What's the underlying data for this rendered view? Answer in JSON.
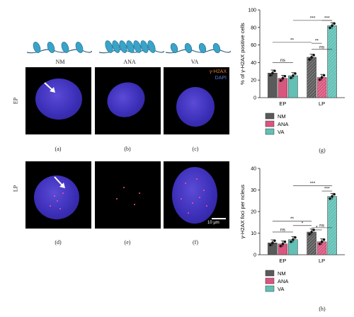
{
  "panel_labels": {
    "a": "(a)",
    "b": "(b)",
    "c": "(c)",
    "d": "(d)",
    "e": "(e)",
    "f": "(f)",
    "g": "(g)",
    "h": "(h)"
  },
  "column_labels": [
    "NM",
    "ANA",
    "VA"
  ],
  "row_labels": [
    "EP",
    "LP"
  ],
  "channel_labels": {
    "marker": "γ-H2AX",
    "nucleus": "DAPI"
  },
  "scale_bar": "10 μm",
  "colors": {
    "NM": "#5a5a5a",
    "ANA": "#d9567f",
    "VA": "#62c0b5",
    "marker_text": "#e07a2c",
    "dapi_text": "#5a7fd6",
    "chromatin": "#3aa3c8"
  },
  "chart_data": [
    {
      "type": "bar",
      "title": "",
      "xlabel": "",
      "ylabel": "% of γ-H2AX positive cells",
      "ylim": [
        0,
        100
      ],
      "yticks": [
        "0",
        "20",
        "40",
        "60",
        "80",
        "100"
      ],
      "categories": [
        "EP",
        "LP"
      ],
      "legend": "bottom",
      "series": [
        {
          "name": "NM",
          "values": [
            28,
            46
          ]
        },
        {
          "name": "ANA",
          "values": [
            22,
            23
          ]
        },
        {
          "name": "VA",
          "values": [
            25,
            82
          ]
        }
      ],
      "annotations": [
        "ns",
        "ns",
        "**",
        "**",
        "***",
        "***"
      ]
    },
    {
      "type": "bar",
      "title": "",
      "xlabel": "",
      "ylabel": "γ-H2AX foci per ncleus",
      "ylim": [
        0,
        40
      ],
      "yticks": [
        "0",
        "10",
        "20",
        "30",
        "40"
      ],
      "categories": [
        "EP",
        "LP"
      ],
      "legend": "bottom",
      "series": [
        {
          "name": "NM",
          "values": [
            5.5,
            10.5
          ]
        },
        {
          "name": "ANA",
          "values": [
            5,
            6
          ]
        },
        {
          "name": "VA",
          "values": [
            7,
            27
          ]
        }
      ],
      "annotations": [
        "ns",
        "ns",
        "**",
        "*",
        "*",
        "***",
        "***"
      ]
    }
  ]
}
